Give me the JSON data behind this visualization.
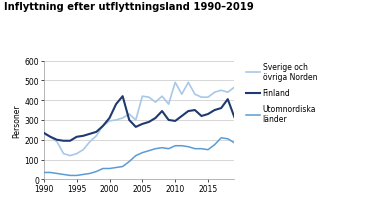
{
  "title": "Inflyttning efter utflyttningsland 1990–2019",
  "ylabel": "Personer",
  "ylim": [
    0,
    600
  ],
  "yticks": [
    0,
    100,
    200,
    300,
    400,
    500,
    600
  ],
  "xlim": [
    1990,
    2019
  ],
  "xticks": [
    1990,
    1995,
    2000,
    2005,
    2010,
    2015
  ],
  "years": [
    1990,
    1991,
    1992,
    1993,
    1994,
    1995,
    1996,
    1997,
    1998,
    1999,
    2000,
    2001,
    2002,
    2003,
    2004,
    2005,
    2006,
    2007,
    2008,
    2009,
    2010,
    2011,
    2012,
    2013,
    2014,
    2015,
    2016,
    2017,
    2018,
    2019
  ],
  "sverige": [
    230,
    215,
    190,
    130,
    120,
    130,
    150,
    190,
    220,
    270,
    295,
    300,
    310,
    330,
    300,
    420,
    415,
    390,
    420,
    380,
    490,
    430,
    490,
    430,
    415,
    415,
    440,
    450,
    440,
    465
  ],
  "finland": [
    235,
    215,
    200,
    195,
    195,
    215,
    220,
    230,
    240,
    270,
    310,
    380,
    420,
    300,
    265,
    280,
    290,
    310,
    345,
    300,
    295,
    320,
    345,
    350,
    320,
    330,
    350,
    360,
    405,
    315
  ],
  "utom": [
    35,
    35,
    30,
    25,
    20,
    20,
    25,
    30,
    40,
    55,
    55,
    60,
    65,
    90,
    120,
    135,
    145,
    155,
    160,
    155,
    170,
    170,
    165,
    155,
    155,
    150,
    175,
    210,
    205,
    185
  ],
  "color_sverige": "#a8c8e8",
  "color_finland": "#1f3a6e",
  "color_utom": "#5b9bd5",
  "legend_labels": [
    "Sverige och\növriga Norden",
    "Finland",
    "Utomnordiska\nländer"
  ],
  "background_color": "#ffffff",
  "grid_color": "#c8c8c8"
}
